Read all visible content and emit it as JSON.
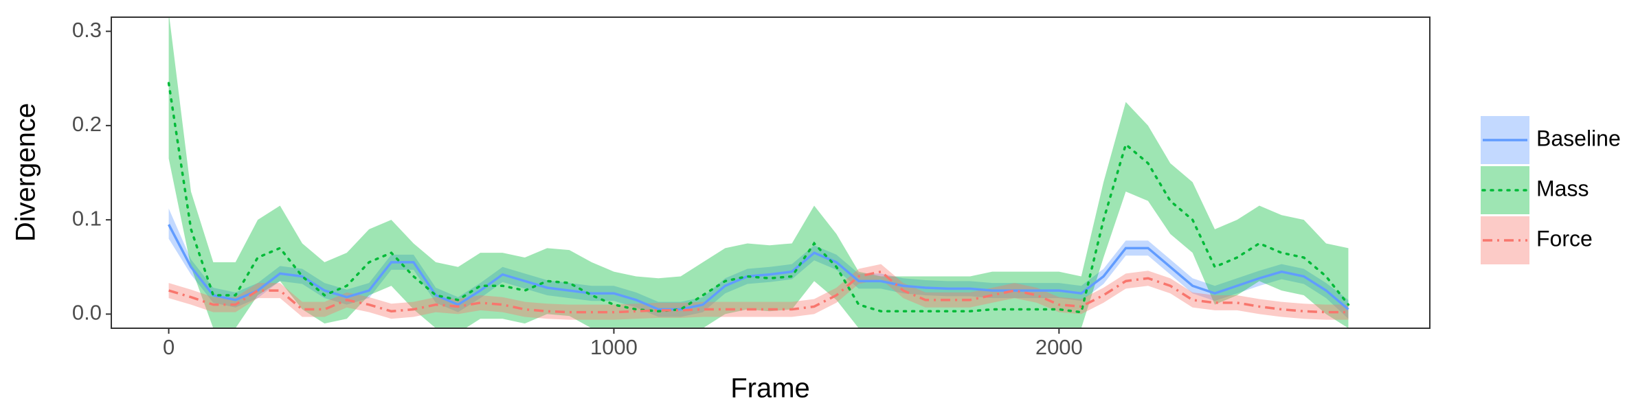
{
  "chart_data": {
    "type": "line",
    "xlabel": "Frame",
    "ylabel": "Divergence",
    "x": [
      0,
      50,
      100,
      150,
      200,
      250,
      300,
      350,
      400,
      450,
      500,
      550,
      600,
      650,
      700,
      750,
      800,
      850,
      900,
      950,
      1000,
      1050,
      1100,
      1150,
      1200,
      1250,
      1300,
      1350,
      1400,
      1450,
      1500,
      1550,
      1600,
      1650,
      1700,
      1750,
      1800,
      1850,
      1900,
      1950,
      2000,
      2050,
      2100,
      2150,
      2200,
      2250,
      2300,
      2350,
      2400,
      2450,
      2500,
      2550,
      2600,
      2650
    ],
    "series": [
      {
        "name": "Baseline",
        "color": "#619CFF",
        "linestyle": "solid",
        "values": [
          0.095,
          0.05,
          0.02,
          0.015,
          0.025,
          0.043,
          0.04,
          0.025,
          0.018,
          0.025,
          0.055,
          0.055,
          0.02,
          0.01,
          0.025,
          0.042,
          0.035,
          0.028,
          0.025,
          0.022,
          0.022,
          0.015,
          0.005,
          0.005,
          0.01,
          0.03,
          0.04,
          0.042,
          0.045,
          0.065,
          0.055,
          0.035,
          0.035,
          0.03,
          0.028,
          0.027,
          0.027,
          0.025,
          0.025,
          0.025,
          0.025,
          0.022,
          0.04,
          0.07,
          0.07,
          0.05,
          0.03,
          0.022,
          0.03,
          0.038,
          0.045,
          0.04,
          0.025,
          0.005
        ],
        "lower": [
          0.08,
          0.042,
          0.012,
          0.007,
          0.017,
          0.035,
          0.032,
          0.017,
          0.01,
          0.017,
          0.047,
          0.047,
          0.012,
          0.002,
          0.017,
          0.034,
          0.027,
          0.02,
          0.017,
          0.014,
          0.014,
          0.007,
          -0.003,
          -0.003,
          0.002,
          0.022,
          0.032,
          0.034,
          0.037,
          0.057,
          0.047,
          0.027,
          0.027,
          0.022,
          0.02,
          0.019,
          0.019,
          0.017,
          0.017,
          0.017,
          0.017,
          0.014,
          0.032,
          0.062,
          0.062,
          0.042,
          0.022,
          0.014,
          0.022,
          0.03,
          0.037,
          0.032,
          0.017,
          -0.005
        ],
        "upper": [
          0.112,
          0.058,
          0.028,
          0.023,
          0.033,
          0.051,
          0.048,
          0.033,
          0.026,
          0.033,
          0.063,
          0.063,
          0.028,
          0.018,
          0.033,
          0.05,
          0.043,
          0.036,
          0.033,
          0.03,
          0.03,
          0.023,
          0.013,
          0.013,
          0.018,
          0.038,
          0.048,
          0.05,
          0.053,
          0.073,
          0.063,
          0.043,
          0.043,
          0.038,
          0.036,
          0.035,
          0.035,
          0.033,
          0.033,
          0.033,
          0.033,
          0.03,
          0.048,
          0.078,
          0.078,
          0.058,
          0.038,
          0.03,
          0.038,
          0.046,
          0.053,
          0.048,
          0.033,
          0.015
        ]
      },
      {
        "name": "Mass",
        "color": "#00BA38",
        "linestyle": "dotted",
        "values": [
          0.245,
          0.09,
          0.02,
          0.02,
          0.06,
          0.07,
          0.04,
          0.02,
          0.03,
          0.055,
          0.065,
          0.04,
          0.02,
          0.015,
          0.03,
          0.03,
          0.025,
          0.035,
          0.033,
          0.02,
          0.01,
          0.005,
          0.003,
          0.005,
          0.02,
          0.035,
          0.04,
          0.038,
          0.04,
          0.075,
          0.05,
          0.01,
          0.003,
          0.003,
          0.003,
          0.003,
          0.003,
          0.005,
          0.005,
          0.005,
          0.005,
          0.002,
          0.1,
          0.18,
          0.16,
          0.12,
          0.1,
          0.05,
          0.06,
          0.075,
          0.065,
          0.06,
          0.04,
          0.01
        ],
        "lower": [
          0.165,
          0.05,
          -0.015,
          -0.015,
          0.02,
          0.035,
          0.005,
          -0.01,
          -0.005,
          0.02,
          0.03,
          0.005,
          -0.015,
          -0.02,
          -0.005,
          -0.005,
          -0.01,
          0,
          -0.002,
          -0.015,
          -0.015,
          -0.015,
          -0.015,
          -0.015,
          -0.015,
          0,
          0.005,
          0.003,
          0.005,
          0.035,
          0.015,
          -0.015,
          -0.015,
          -0.015,
          -0.015,
          -0.015,
          -0.015,
          -0.015,
          -0.015,
          -0.015,
          -0.015,
          -0.015,
          0.06,
          0.13,
          0.12,
          0.085,
          0.065,
          0.01,
          0.02,
          0.035,
          0.025,
          0.02,
          0,
          -0.015
        ],
        "upper": [
          0.32,
          0.13,
          0.055,
          0.055,
          0.1,
          0.115,
          0.075,
          0.055,
          0.065,
          0.09,
          0.1,
          0.075,
          0.055,
          0.05,
          0.065,
          0.065,
          0.06,
          0.07,
          0.068,
          0.055,
          0.045,
          0.04,
          0.038,
          0.04,
          0.055,
          0.07,
          0.075,
          0.073,
          0.075,
          0.115,
          0.085,
          0.045,
          0.04,
          0.04,
          0.04,
          0.04,
          0.04,
          0.045,
          0.045,
          0.045,
          0.045,
          0.04,
          0.14,
          0.225,
          0.2,
          0.16,
          0.14,
          0.09,
          0.1,
          0.115,
          0.105,
          0.1,
          0.075,
          0.07
        ]
      },
      {
        "name": "Force",
        "color": "#F8766D",
        "linestyle": "dashdot",
        "values": [
          0.025,
          0.018,
          0.01,
          0.01,
          0.025,
          0.025,
          0.005,
          0.005,
          0.015,
          0.01,
          0.003,
          0.005,
          0.01,
          0.008,
          0.012,
          0.01,
          0.005,
          0.003,
          0.002,
          0.002,
          0.002,
          0.003,
          0.004,
          0.004,
          0.005,
          0.005,
          0.005,
          0.005,
          0.005,
          0.008,
          0.02,
          0.04,
          0.045,
          0.025,
          0.015,
          0.015,
          0.015,
          0.02,
          0.025,
          0.02,
          0.01,
          0.008,
          0.02,
          0.035,
          0.038,
          0.03,
          0.015,
          0.012,
          0.012,
          0.008,
          0.005,
          0.003,
          0.002,
          0.002
        ],
        "lower": [
          0.017,
          0.01,
          0.002,
          0.002,
          0.017,
          0.017,
          -0.003,
          -0.003,
          0.007,
          0.002,
          -0.005,
          -0.003,
          0.002,
          0,
          0.004,
          0.002,
          -0.003,
          -0.005,
          -0.006,
          -0.006,
          -0.006,
          -0.005,
          -0.004,
          -0.004,
          -0.003,
          -0.003,
          -0.003,
          -0.003,
          -0.003,
          0,
          0.012,
          0.032,
          0.037,
          0.017,
          0.007,
          0.007,
          0.007,
          0.012,
          0.017,
          0.012,
          0.002,
          0,
          0.012,
          0.027,
          0.03,
          0.022,
          0.007,
          0.004,
          0.004,
          0,
          -0.003,
          -0.005,
          -0.006,
          -0.006
        ],
        "upper": [
          0.033,
          0.026,
          0.018,
          0.018,
          0.033,
          0.033,
          0.013,
          0.013,
          0.023,
          0.018,
          0.011,
          0.013,
          0.018,
          0.016,
          0.02,
          0.018,
          0.013,
          0.011,
          0.01,
          0.01,
          0.01,
          0.011,
          0.012,
          0.012,
          0.013,
          0.013,
          0.013,
          0.013,
          0.013,
          0.016,
          0.028,
          0.048,
          0.053,
          0.033,
          0.023,
          0.023,
          0.023,
          0.028,
          0.033,
          0.028,
          0.018,
          0.016,
          0.028,
          0.043,
          0.046,
          0.038,
          0.023,
          0.02,
          0.02,
          0.016,
          0.013,
          0.011,
          0.01,
          0.01
        ]
      }
    ],
    "xlim": [
      -129,
      2833
    ],
    "xticks": [
      0,
      1000,
      2000
    ],
    "ylim": [
      -0.015,
      0.315
    ],
    "yticks": [
      {
        "value": 0,
        "label": "0.0"
      },
      0.1,
      0.2,
      0.3
    ],
    "grid": false,
    "legend": "right"
  }
}
